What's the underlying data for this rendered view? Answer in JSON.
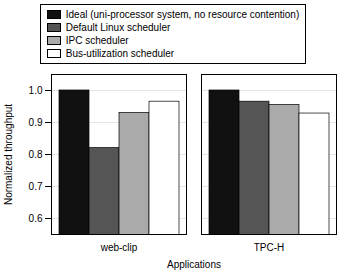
{
  "chart_data": {
    "type": "bar",
    "categories": [
      "web-clip",
      "TPC-H"
    ],
    "series": [
      {
        "name": "Ideal (uni-processor system, no resource contention)",
        "color": "#111111",
        "values": [
          1.0,
          1.0
        ]
      },
      {
        "name": "Default Linux scheduler",
        "color": "#555555",
        "values": [
          0.82,
          0.965
        ]
      },
      {
        "name": "IPC scheduler",
        "color": "#aaaaaa",
        "values": [
          0.93,
          0.955
        ]
      },
      {
        "name": "Bus-utilization scheduler",
        "color": "#ffffff",
        "values": [
          0.965,
          0.928
        ]
      }
    ],
    "xlabel": "Applications",
    "ylabel": "Normalized throughput",
    "ylim": [
      0.55,
      1.05
    ],
    "yticks": [
      0.6,
      0.7,
      0.8,
      0.9,
      {
        "value": 1.0,
        "label": "1.0"
      }
    ],
    "grid": true,
    "legend": "top"
  }
}
